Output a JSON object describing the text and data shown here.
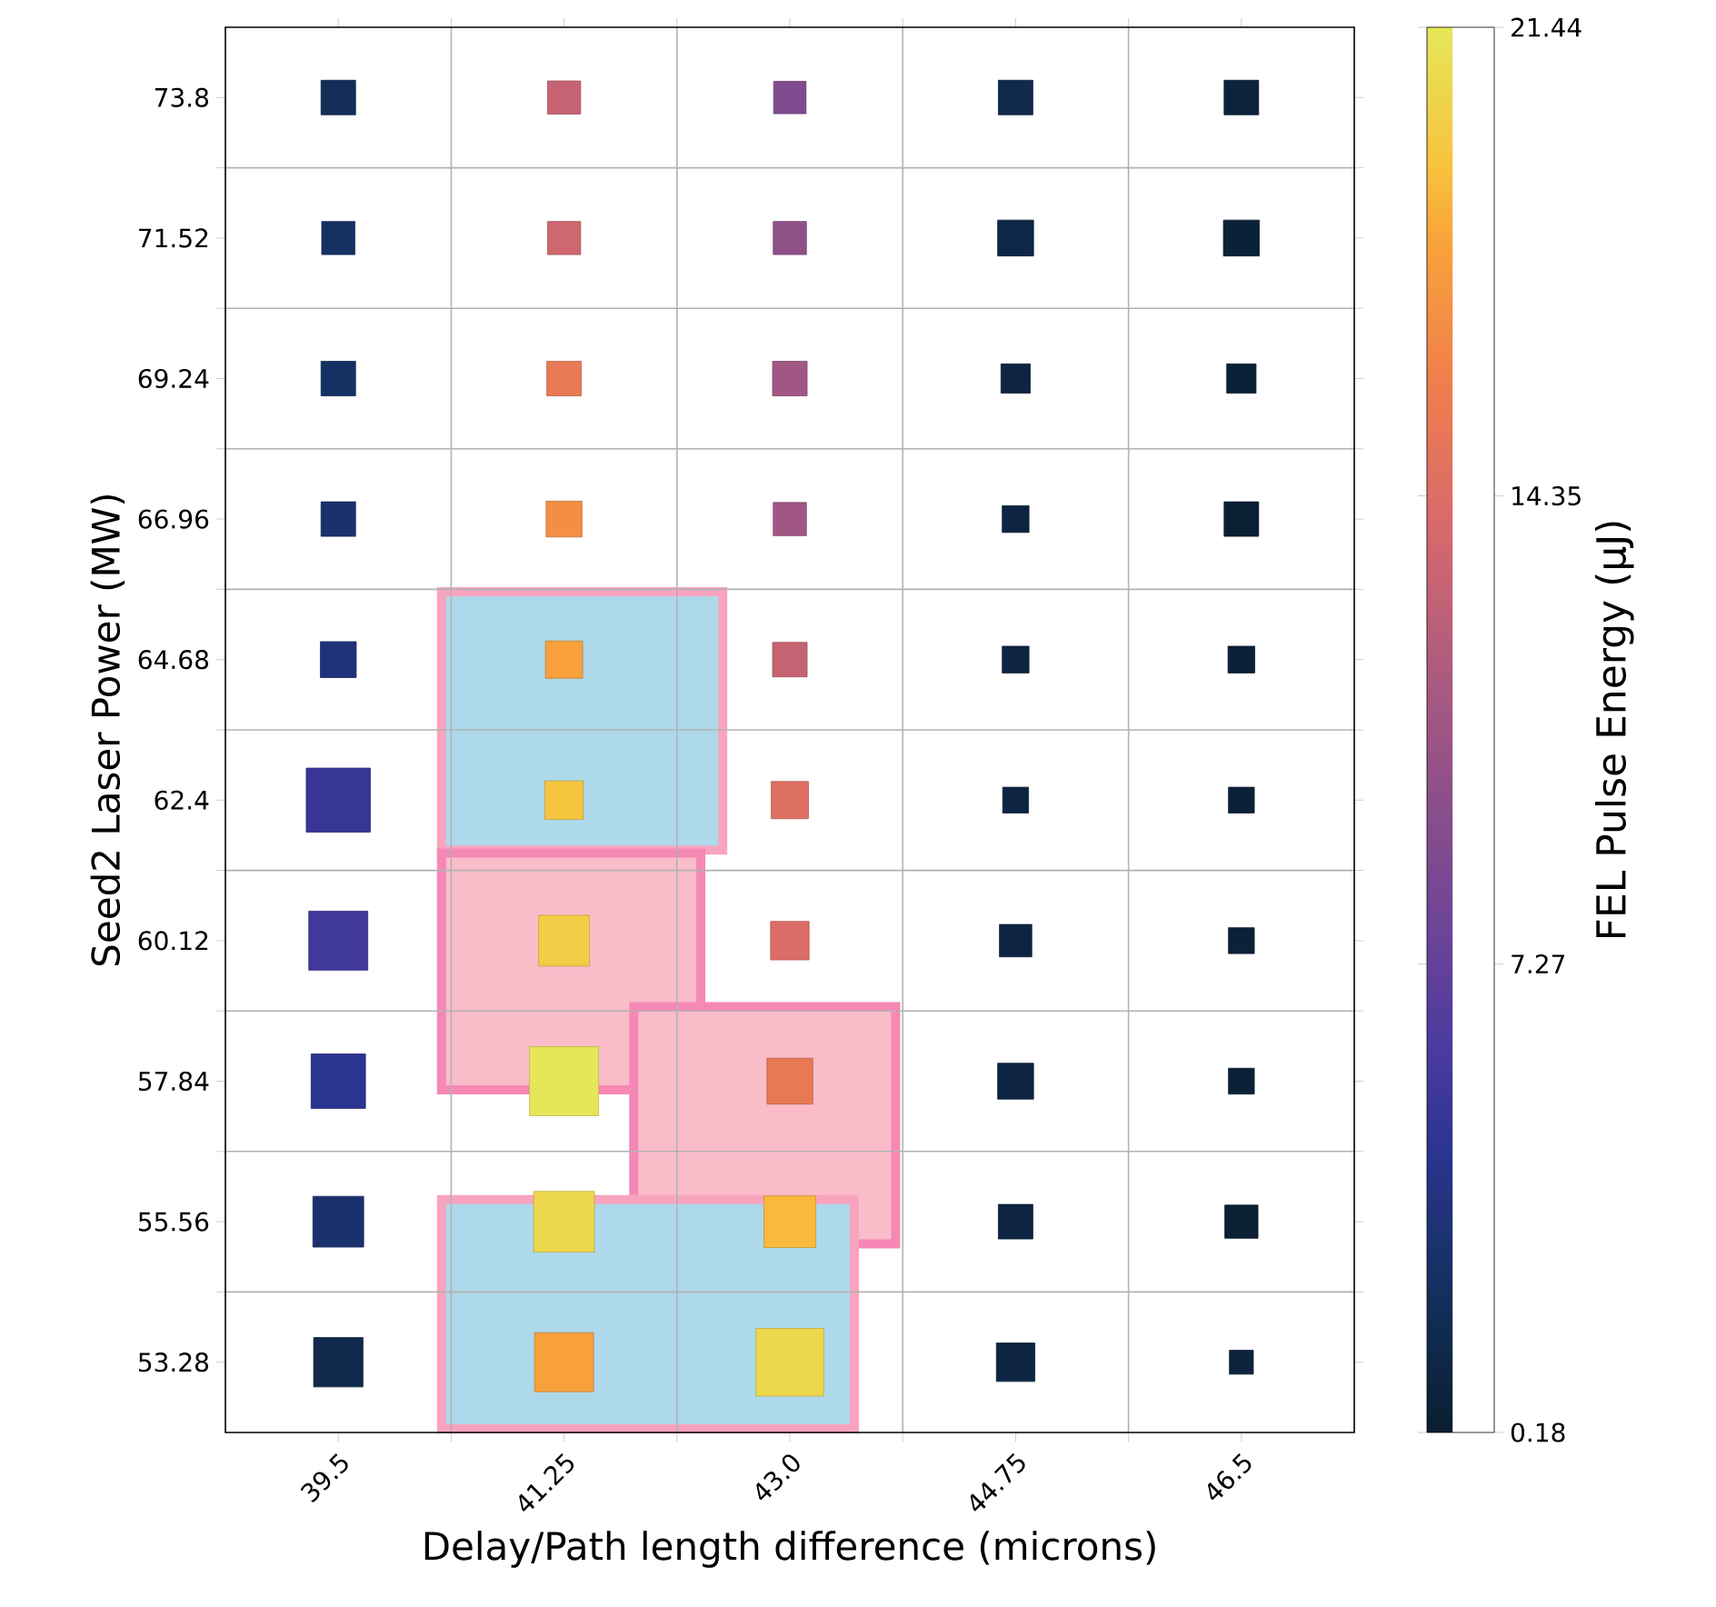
{
  "chart_data": {
    "type": "bubble",
    "xlabel": "Delay/Path length difference (microns)",
    "ylabel": "Seed2 Laser Power (MW)",
    "clabel": "FEL Pulse Energy (μJ)",
    "x": [
      39.5,
      39.5,
      39.5,
      39.5,
      39.5,
      39.5,
      39.5,
      39.5,
      39.5,
      39.5,
      41.25,
      41.25,
      41.25,
      41.25,
      41.25,
      41.25,
      41.25,
      41.25,
      41.25,
      41.25,
      43,
      43,
      43,
      43,
      43,
      43,
      43,
      43,
      43,
      43,
      44.75,
      44.75,
      44.75,
      44.75,
      44.75,
      44.75,
      44.75,
      44.75,
      44.75,
      44.75,
      46.5,
      46.5,
      46.5,
      46.5,
      46.5,
      46.5,
      46.5,
      46.5,
      46.5,
      46.5
    ],
    "values": [
      73.8,
      71.52,
      69.24,
      66.96,
      64.68,
      62.4,
      60.12,
      57.84,
      55.56,
      53.28,
      73.8,
      71.52,
      69.24,
      66.96,
      64.68,
      62.4,
      60.12,
      57.84,
      55.56,
      53.28,
      73.8,
      71.52,
      69.24,
      66.96,
      64.68,
      62.4,
      60.12,
      57.84,
      55.56,
      53.28,
      73.8,
      71.52,
      69.24,
      66.96,
      64.68,
      62.4,
      60.12,
      57.84,
      55.56,
      53.28,
      73.8,
      71.52,
      69.24,
      66.96,
      64.68,
      62.4,
      60.12,
      57.84,
      55.56,
      53.28
    ],
    "sizes": [
      0.25,
      0.23,
      0.25,
      0.25,
      0.27,
      0.86,
      0.73,
      0.62,
      0.54,
      0.51,
      0.23,
      0.23,
      0.25,
      0.27,
      0.29,
      0.31,
      0.54,
      1.0,
      0.77,
      0.73,
      0.22,
      0.23,
      0.25,
      0.23,
      0.25,
      0.29,
      0.31,
      0.44,
      0.56,
      0.96,
      0.25,
      0.27,
      0.18,
      0.15,
      0.15,
      0.14,
      0.22,
      0.27,
      0.25,
      0.31,
      0.25,
      0.27,
      0.18,
      0.25,
      0.15,
      0.14,
      0.14,
      0.14,
      0.23,
      0.12
    ],
    "cvalues": [
      2,
      2.5,
      2.5,
      3,
      3.5,
      5,
      5.5,
      4.5,
      3,
      1.5,
      13,
      13.5,
      15.5,
      17,
      18,
      19.5,
      20,
      21.4,
      20.5,
      18,
      9,
      10,
      11,
      11,
      13,
      14.5,
      14.3,
      15.5,
      19,
      20.5,
      1.5,
      1.2,
      1,
      1,
      1,
      1,
      1,
      1,
      1,
      1,
      0.8,
      0.5,
      0.5,
      0.3,
      0.5,
      0.5,
      0.5,
      0.5,
      0.4,
      0.8
    ],
    "clim": [
      0.18,
      21.44
    ],
    "cticks": [
      0.18,
      7.27,
      14.35,
      21.44
    ],
    "xlim": [
      38.625,
      47.375
    ],
    "ylim": [
      52.14,
      74.94
    ],
    "xticks": [
      39.5,
      {
        "value": 40.375,
        "label": null
      },
      41.25,
      {
        "value": 42.125,
        "label": null
      },
      {
        "value": 43,
        "label": "43.0"
      },
      {
        "value": 43.875,
        "label": null
      },
      44.75,
      {
        "value": 45.625,
        "label": null
      },
      46.5
    ],
    "yticks": [
      53.28,
      {
        "value": 54.42,
        "label": null
      },
      55.56,
      {
        "value": 56.7,
        "label": null
      },
      57.84,
      {
        "value": 58.98,
        "label": null
      },
      60.12,
      {
        "value": 61.26,
        "label": null
      },
      62.4,
      {
        "value": 63.54,
        "label": null
      },
      64.68,
      {
        "value": 65.82,
        "label": null
      },
      66.96,
      {
        "value": 68.1,
        "label": null
      },
      69.24,
      {
        "value": 70.38,
        "label": null
      },
      71.52,
      {
        "value": 72.66,
        "label": null
      },
      73.8
    ],
    "grid": true,
    "marker": "square"
  }
}
